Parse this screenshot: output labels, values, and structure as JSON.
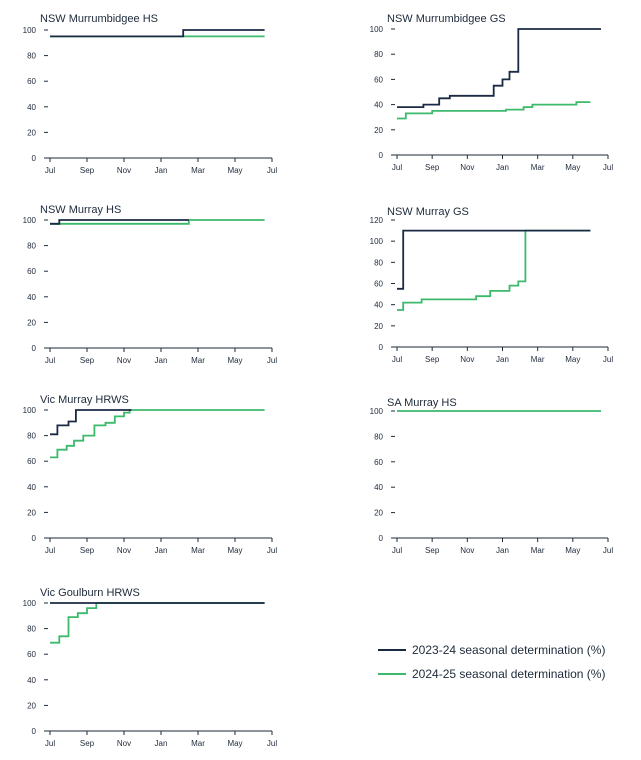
{
  "colors": {
    "series_2023": "#1b2a44",
    "series_2024": "#3cb96b",
    "axis": "#1e2a3a"
  },
  "legend": {
    "items": [
      {
        "label": "2023-24 seasonal determination (%)",
        "color": "#1b2a44"
      },
      {
        "label": "2024-25 seasonal determination (%)",
        "color": "#3cb96b"
      }
    ]
  },
  "chart_data": [
    {
      "type": "line",
      "step": true,
      "title": "NSW Murrumbidgee HS",
      "x_ticks": [
        "Jul",
        "Sep",
        "Nov",
        "Jan",
        "Mar",
        "May",
        "Jul"
      ],
      "y_ticks": [
        0,
        20,
        40,
        60,
        80,
        100
      ],
      "ylim": [
        0,
        100
      ],
      "series": [
        {
          "name": "2023-24 seasonal determination (%)",
          "points": [
            [
              0,
              95
            ],
            [
              7.2,
              95
            ],
            [
              7.2,
              100
            ],
            [
              11.6,
              100
            ]
          ]
        },
        {
          "name": "2024-25 seasonal determination (%)",
          "points": [
            [
              0,
              95
            ],
            [
              11.6,
              95
            ]
          ]
        }
      ]
    },
    {
      "type": "line",
      "step": true,
      "title": "NSW Murrumbidgee GS",
      "x_ticks": [
        "Jul",
        "Sep",
        "Nov",
        "Jan",
        "Mar",
        "May",
        "Jul"
      ],
      "y_ticks": [
        0,
        20,
        40,
        60,
        80,
        100
      ],
      "ylim": [
        0,
        100
      ],
      "series": [
        {
          "name": "2023-24 seasonal determination (%)",
          "points": [
            [
              0,
              38
            ],
            [
              1.5,
              38
            ],
            [
              1.5,
              40
            ],
            [
              2.4,
              40
            ],
            [
              2.4,
              45
            ],
            [
              3.0,
              45
            ],
            [
              3.0,
              47
            ],
            [
              5.5,
              47
            ],
            [
              5.5,
              55
            ],
            [
              6.0,
              55
            ],
            [
              6.0,
              60
            ],
            [
              6.4,
              60
            ],
            [
              6.4,
              66
            ],
            [
              6.9,
              66
            ],
            [
              6.9,
              100
            ],
            [
              11.6,
              100
            ]
          ]
        },
        {
          "name": "2024-25 seasonal determination (%)",
          "points": [
            [
              0,
              29
            ],
            [
              0.5,
              29
            ],
            [
              0.5,
              33
            ],
            [
              2.0,
              33
            ],
            [
              2.0,
              35
            ],
            [
              6.2,
              35
            ],
            [
              6.2,
              36
            ],
            [
              7.2,
              36
            ],
            [
              7.2,
              38
            ],
            [
              7.7,
              38
            ],
            [
              7.7,
              40
            ],
            [
              10.2,
              40
            ],
            [
              10.2,
              42
            ],
            [
              11.0,
              42
            ]
          ]
        }
      ]
    },
    {
      "type": "line",
      "step": true,
      "title": "NSW Murray HS",
      "x_ticks": [
        "Jul",
        "Sep",
        "Nov",
        "Jan",
        "Mar",
        "May",
        "Jul"
      ],
      "y_ticks": [
        0,
        20,
        40,
        60,
        80,
        100
      ],
      "ylim": [
        0,
        100
      ],
      "series": [
        {
          "name": "2023-24 seasonal determination (%)",
          "points": [
            [
              0,
              97
            ],
            [
              0.5,
              97
            ],
            [
              0.5,
              100
            ],
            [
              7.5,
              100
            ]
          ]
        },
        {
          "name": "2024-25 seasonal determination (%)",
          "points": [
            [
              0,
              97
            ],
            [
              7.5,
              97
            ],
            [
              7.5,
              100
            ],
            [
              11.6,
              100
            ]
          ]
        }
      ]
    },
    {
      "type": "line",
      "step": true,
      "title": "NSW Murray GS",
      "x_ticks": [
        "Jul",
        "Sep",
        "Nov",
        "Jan",
        "Mar",
        "May",
        "Jul"
      ],
      "y_ticks": [
        0,
        20,
        40,
        60,
        80,
        100,
        120
      ],
      "ylim": [
        0,
        120
      ],
      "series": [
        {
          "name": "2023-24 seasonal determination (%)",
          "points": [
            [
              0,
              55
            ],
            [
              0.35,
              55
            ],
            [
              0.35,
              110
            ],
            [
              11.0,
              110
            ]
          ]
        },
        {
          "name": "2024-25 seasonal determination (%)",
          "points": [
            [
              0,
              35
            ],
            [
              0.35,
              35
            ],
            [
              0.35,
              42
            ],
            [
              1.4,
              42
            ],
            [
              1.4,
              45
            ],
            [
              4.5,
              45
            ],
            [
              4.5,
              48
            ],
            [
              5.3,
              48
            ],
            [
              5.3,
              53
            ],
            [
              6.4,
              53
            ],
            [
              6.4,
              58
            ],
            [
              6.9,
              58
            ],
            [
              6.9,
              62
            ],
            [
              7.3,
              62
            ],
            [
              7.3,
              110
            ],
            [
              11.0,
              110
            ]
          ]
        }
      ]
    },
    {
      "type": "line",
      "step": true,
      "title": "Vic Murray HRWS",
      "x_ticks": [
        "Jul",
        "Sep",
        "Nov",
        "Jan",
        "Mar",
        "May",
        "Jul"
      ],
      "y_ticks": [
        0,
        20,
        40,
        60,
        80,
        100
      ],
      "ylim": [
        0,
        100
      ],
      "series": [
        {
          "name": "2023-24 seasonal determination (%)",
          "points": [
            [
              0,
              81
            ],
            [
              0.4,
              81
            ],
            [
              0.4,
              88
            ],
            [
              1.0,
              88
            ],
            [
              1.0,
              91
            ],
            [
              1.4,
              91
            ],
            [
              1.4,
              100
            ],
            [
              4.4,
              100
            ]
          ]
        },
        {
          "name": "2024-25 seasonal determination (%)",
          "points": [
            [
              0,
              63
            ],
            [
              0.4,
              63
            ],
            [
              0.4,
              69
            ],
            [
              0.9,
              69
            ],
            [
              0.9,
              72
            ],
            [
              1.3,
              72
            ],
            [
              1.3,
              76
            ],
            [
              1.8,
              76
            ],
            [
              1.8,
              80
            ],
            [
              2.4,
              80
            ],
            [
              2.4,
              88
            ],
            [
              3.0,
              88
            ],
            [
              3.0,
              90
            ],
            [
              3.5,
              90
            ],
            [
              3.5,
              95
            ],
            [
              4.0,
              95
            ],
            [
              4.0,
              98
            ],
            [
              4.3,
              98
            ],
            [
              4.3,
              100
            ],
            [
              11.6,
              100
            ]
          ]
        }
      ]
    },
    {
      "type": "line",
      "step": true,
      "title": "SA Murray HS",
      "x_ticks": [
        "Jul",
        "Sep",
        "Nov",
        "Jan",
        "Mar",
        "May",
        "Jul"
      ],
      "y_ticks": [
        0,
        20,
        40,
        60,
        80,
        100
      ],
      "ylim": [
        0,
        100
      ],
      "series": [
        {
          "name": "2024-25 seasonal determination (%)",
          "points": [
            [
              0,
              100
            ],
            [
              11.6,
              100
            ]
          ]
        }
      ]
    },
    {
      "type": "line",
      "step": true,
      "title": "Vic Goulburn HRWS",
      "x_ticks": [
        "Jul",
        "Sep",
        "Nov",
        "Jan",
        "Mar",
        "May",
        "Jul"
      ],
      "y_ticks": [
        0,
        20,
        40,
        60,
        80,
        100
      ],
      "ylim": [
        0,
        100
      ],
      "series": [
        {
          "name": "2023-24 seasonal determination (%)",
          "points": [
            [
              0,
              100
            ],
            [
              11.6,
              100
            ]
          ]
        },
        {
          "name": "2024-25 seasonal determination (%)",
          "points": [
            [
              0,
              69
            ],
            [
              0.5,
              69
            ],
            [
              0.5,
              74
            ],
            [
              1.0,
              74
            ],
            [
              1.0,
              89
            ],
            [
              1.5,
              89
            ],
            [
              1.5,
              92
            ],
            [
              2.0,
              92
            ],
            [
              2.0,
              96
            ],
            [
              2.5,
              96
            ],
            [
              2.5,
              100
            ],
            [
              11.6,
              100
            ]
          ]
        }
      ]
    }
  ]
}
